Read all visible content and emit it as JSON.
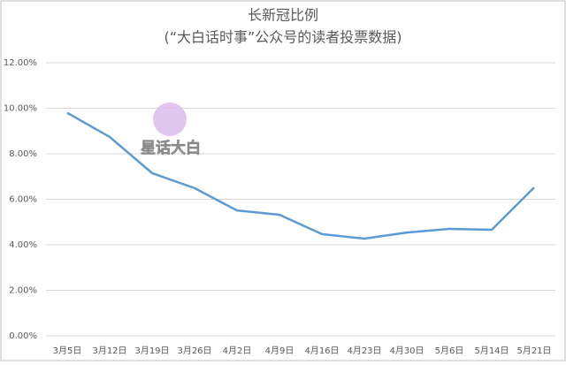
{
  "chart_data": {
    "type": "line",
    "title": "长新冠比例",
    "subtitle": "(“大白话时事”公众号的读者投票数据)",
    "watermark": "星话大白",
    "categories": [
      "3月5日",
      "3月12日",
      "3月19日",
      "3月26日",
      "4月2日",
      "4月9日",
      "4月16日",
      "4月23日",
      "4月30日",
      "5月6日",
      "5月14日",
      "5月21日"
    ],
    "series": [
      {
        "name": "长新冠比例",
        "color": "#5b9bd5",
        "values": [
          9.8,
          8.74,
          7.15,
          6.49,
          5.51,
          5.32,
          4.47,
          4.27,
          4.54,
          4.7,
          4.66,
          6.52
        ]
      }
    ],
    "ylim": [
      0,
      12
    ],
    "yticks": [
      {
        "value": 0,
        "label": "0.00%"
      },
      {
        "value": 2,
        "label": "2.00%"
      },
      {
        "value": 4,
        "label": "4.00%"
      },
      {
        "value": 6,
        "label": "6.00%"
      },
      {
        "value": 8,
        "label": "8.00%"
      },
      {
        "value": 10,
        "label": "10.00%"
      },
      {
        "value": 12,
        "label": "12.00%"
      }
    ],
    "grid": true
  }
}
